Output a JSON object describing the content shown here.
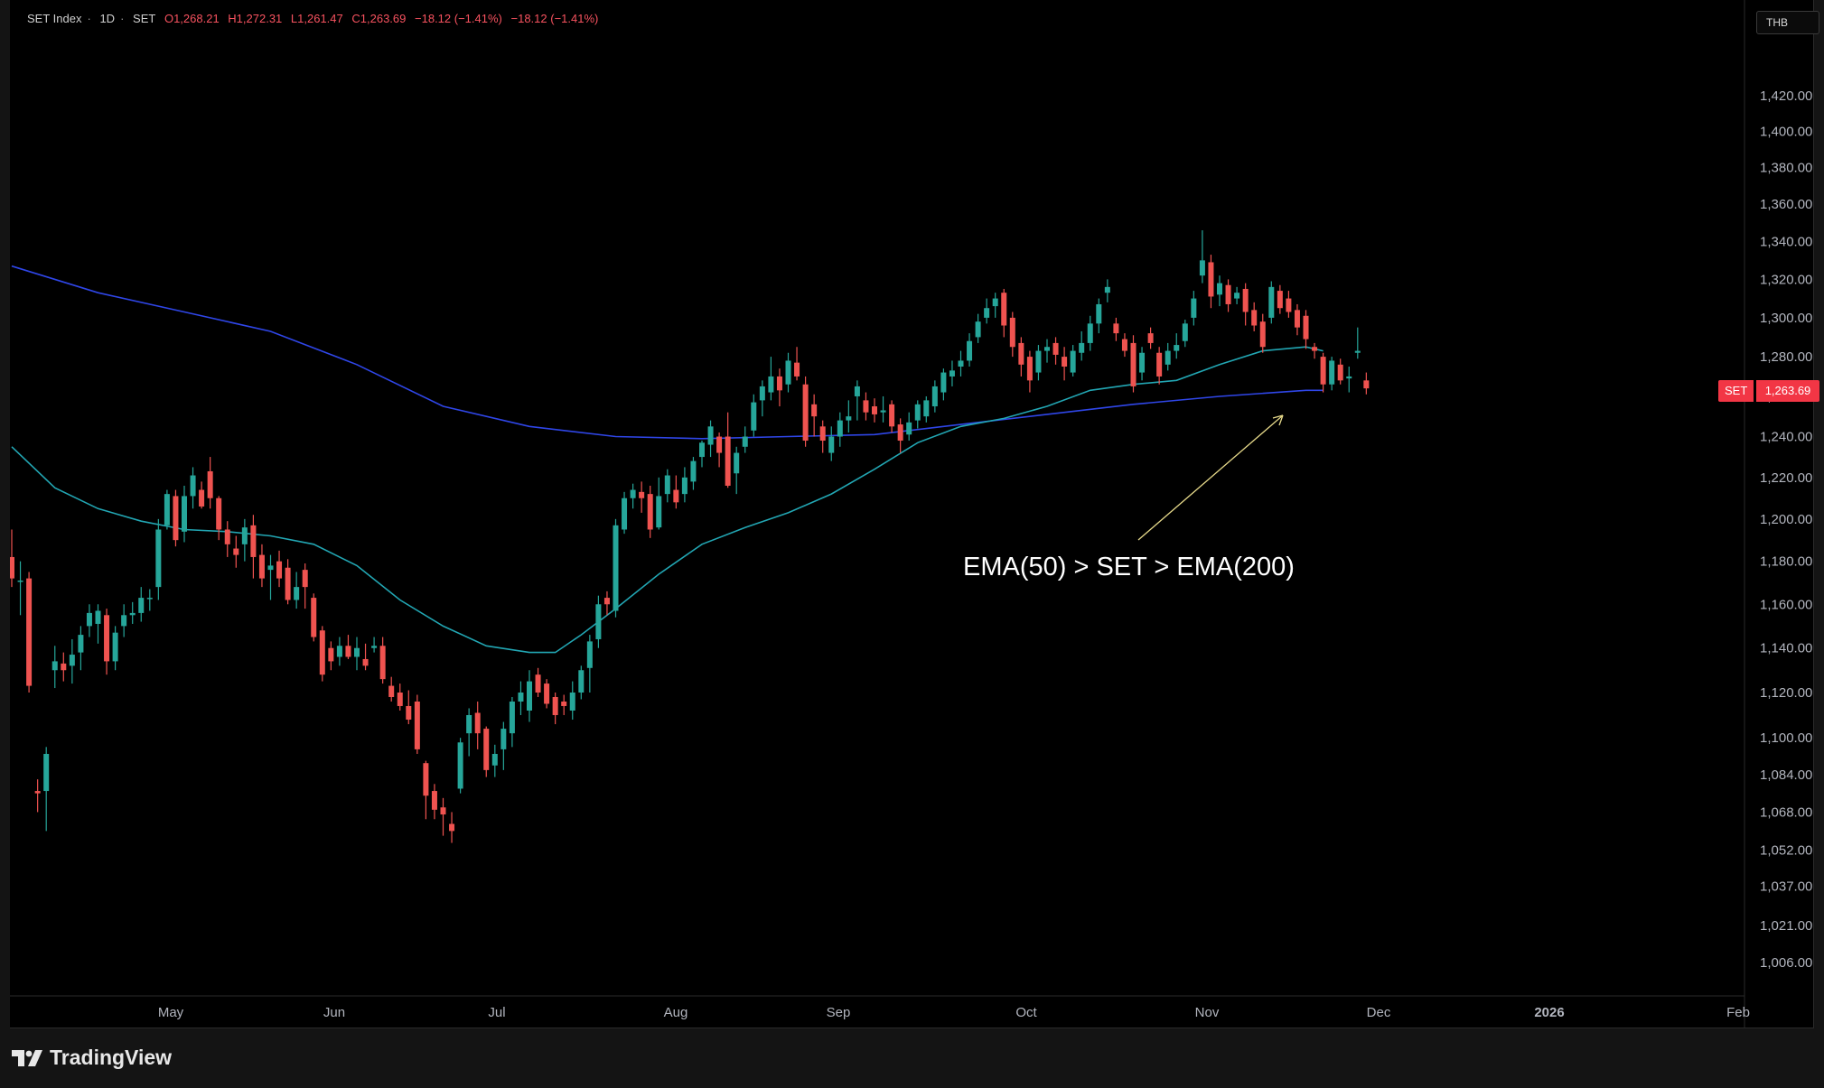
{
  "legend": {
    "symbol": "SET Index",
    "interval": "1D",
    "exchange": "SET",
    "open": "O1,268.21",
    "high": "H1,272.31",
    "low": "L1,261.47",
    "close": "C1,263.69",
    "change": "−18.12 (−1.41%)",
    "change2": "−18.12 (−1.41%)"
  },
  "currency": "THB",
  "last_price": {
    "name": "SET",
    "value": "1,263.69"
  },
  "annotation": "EMA(50) > SET > EMA(200)",
  "brand": "TradingView",
  "colors": {
    "up": "#26a69a",
    "down": "#ef5350",
    "ema50": "#22a6b3",
    "ema200": "#2f46e8",
    "arrow": "#e6d98a",
    "background": "#000000"
  },
  "chart_data": {
    "type": "candlestick",
    "title": "SET Index · 1D · SET",
    "y_axis": {
      "ticks": [
        "1,420.00",
        "1,400.00",
        "1,380.00",
        "1,360.00",
        "1,340.00",
        "1,320.00",
        "1,300.00",
        "1,280.00",
        "1,260.00",
        "1,240.00",
        "1,220.00",
        "1,200.00",
        "1,180.00",
        "1,160.00",
        "1,140.00",
        "1,120.00",
        "1,100.00",
        "1,084.00",
        "1,068.00",
        "1,052.00",
        "1,037.00",
        "1,021.00",
        "1,006.00"
      ],
      "scale": "log",
      "ylim": [
        995,
        1445
      ]
    },
    "x_axis": {
      "ticks": [
        "May",
        "Jun",
        "Jul",
        "Aug",
        "Sep",
        "Oct",
        "Nov",
        "Dec",
        "2026",
        "Feb"
      ]
    },
    "series": [
      {
        "name": "EMA(50)",
        "points": [
          [
            0,
            1235
          ],
          [
            5,
            1215
          ],
          [
            10,
            1205
          ],
          [
            15,
            1199
          ],
          [
            20,
            1195
          ],
          [
            25,
            1194
          ],
          [
            30,
            1192
          ],
          [
            35,
            1188
          ],
          [
            40,
            1178
          ],
          [
            45,
            1162
          ],
          [
            50,
            1150
          ],
          [
            55,
            1141
          ],
          [
            60,
            1138
          ],
          [
            63,
            1138
          ],
          [
            66,
            1146
          ],
          [
            70,
            1158
          ],
          [
            75,
            1174
          ],
          [
            80,
            1188
          ],
          [
            85,
            1196
          ],
          [
            90,
            1203
          ],
          [
            95,
            1212
          ],
          [
            100,
            1224
          ],
          [
            105,
            1237
          ],
          [
            110,
            1245
          ],
          [
            115,
            1249
          ],
          [
            120,
            1255
          ],
          [
            125,
            1263
          ],
          [
            130,
            1266
          ],
          [
            135,
            1268
          ],
          [
            140,
            1276
          ],
          [
            145,
            1283
          ],
          [
            150,
            1285
          ],
          [
            152,
            1283
          ]
        ]
      },
      {
        "name": "EMA(200)",
        "points": [
          [
            0,
            1327
          ],
          [
            10,
            1313
          ],
          [
            20,
            1303
          ],
          [
            30,
            1293
          ],
          [
            40,
            1276
          ],
          [
            50,
            1255
          ],
          [
            60,
            1245
          ],
          [
            70,
            1240
          ],
          [
            80,
            1239
          ],
          [
            90,
            1240
          ],
          [
            100,
            1241
          ],
          [
            110,
            1246
          ],
          [
            120,
            1251
          ],
          [
            130,
            1256
          ],
          [
            140,
            1260
          ],
          [
            150,
            1263
          ],
          [
            152,
            1263
          ]
        ]
      }
    ],
    "candles": [
      [
        1182,
        1172,
        1195,
        1168
      ],
      [
        1171,
        1171,
        1180,
        1155
      ],
      [
        1172,
        1123,
        1175,
        1120
      ],
      [
        1077,
        1076,
        1082,
        1068
      ],
      [
        1077,
        1093,
        1096,
        1060
      ],
      [
        1130,
        1134,
        1141,
        1122
      ],
      [
        1133,
        1130,
        1138,
        1125
      ],
      [
        1132,
        1137,
        1144,
        1124
      ],
      [
        1138,
        1146,
        1150,
        1130
      ],
      [
        1150,
        1156,
        1160,
        1145
      ],
      [
        1151,
        1157,
        1160,
        1142
      ],
      [
        1155,
        1134,
        1158,
        1128
      ],
      [
        1134,
        1147,
        1150,
        1130
      ],
      [
        1150,
        1155,
        1160,
        1145
      ],
      [
        1155,
        1156,
        1161,
        1151
      ],
      [
        1156,
        1163,
        1168,
        1152
      ],
      [
        1163,
        1163,
        1167,
        1157
      ],
      [
        1168,
        1195,
        1200,
        1162
      ],
      [
        1197,
        1212,
        1214,
        1195
      ],
      [
        1211,
        1190,
        1214,
        1187
      ],
      [
        1194,
        1211,
        1216,
        1189
      ],
      [
        1211,
        1221,
        1225,
        1205
      ],
      [
        1214,
        1206,
        1218,
        1205
      ],
      [
        1223,
        1210,
        1230,
        1205
      ],
      [
        1210,
        1195,
        1211,
        1190
      ],
      [
        1195,
        1188,
        1199,
        1182
      ],
      [
        1186,
        1183,
        1192,
        1177
      ],
      [
        1188,
        1196,
        1200,
        1180
      ],
      [
        1197,
        1182,
        1202,
        1172
      ],
      [
        1183,
        1172,
        1188,
        1168
      ],
      [
        1176,
        1178,
        1183,
        1162
      ],
      [
        1180,
        1172,
        1185,
        1168
      ],
      [
        1177,
        1162,
        1181,
        1160
      ],
      [
        1162,
        1168,
        1175,
        1158
      ],
      [
        1176,
        1168,
        1179,
        1158
      ],
      [
        1163,
        1145,
        1165,
        1143
      ],
      [
        1148,
        1128,
        1150,
        1125
      ],
      [
        1140,
        1134,
        1143,
        1130
      ],
      [
        1136,
        1141,
        1145,
        1132
      ],
      [
        1141,
        1136,
        1146,
        1135
      ],
      [
        1136,
        1140,
        1145,
        1130
      ],
      [
        1135,
        1132,
        1142,
        1130
      ],
      [
        1140,
        1141,
        1145,
        1138
      ],
      [
        1141,
        1126,
        1145,
        1124
      ],
      [
        1123,
        1118,
        1127,
        1116
      ],
      [
        1120,
        1114,
        1124,
        1112
      ],
      [
        1114,
        1108,
        1121,
        1106
      ],
      [
        1116,
        1095,
        1119,
        1093
      ],
      [
        1089,
        1075,
        1090,
        1065
      ],
      [
        1077,
        1069,
        1080,
        1065
      ],
      [
        1070,
        1067,
        1074,
        1058
      ],
      [
        1063,
        1060,
        1068,
        1055
      ],
      [
        1078,
        1098,
        1100,
        1076
      ],
      [
        1102,
        1110,
        1113,
        1092
      ],
      [
        1111,
        1102,
        1116,
        1095
      ],
      [
        1104,
        1086,
        1105,
        1083
      ],
      [
        1088,
        1093,
        1097,
        1083
      ],
      [
        1095,
        1104,
        1107,
        1086
      ],
      [
        1102,
        1116,
        1118,
        1096
      ],
      [
        1116,
        1120,
        1125,
        1110
      ],
      [
        1112,
        1125,
        1130,
        1107
      ],
      [
        1128,
        1120,
        1131,
        1118
      ],
      [
        1124,
        1115,
        1126,
        1113
      ],
      [
        1118,
        1110,
        1120,
        1106
      ],
      [
        1116,
        1114,
        1119,
        1110
      ],
      [
        1112,
        1120,
        1125,
        1108
      ],
      [
        1120,
        1130,
        1132,
        1117
      ],
      [
        1131,
        1143,
        1146,
        1120
      ],
      [
        1144,
        1160,
        1164,
        1140
      ],
      [
        1163,
        1160,
        1166,
        1155
      ],
      [
        1157,
        1197,
        1200,
        1154
      ],
      [
        1195,
        1210,
        1213,
        1193
      ],
      [
        1210,
        1214,
        1217,
        1205
      ],
      [
        1213,
        1210,
        1218,
        1203
      ],
      [
        1212,
        1195,
        1216,
        1191
      ],
      [
        1196,
        1211,
        1220,
        1195
      ],
      [
        1212,
        1221,
        1224,
        1208
      ],
      [
        1214,
        1208,
        1221,
        1205
      ],
      [
        1212,
        1220,
        1225,
        1208
      ],
      [
        1218,
        1228,
        1230,
        1214
      ],
      [
        1230,
        1237,
        1238,
        1225
      ],
      [
        1236,
        1245,
        1248,
        1230
      ],
      [
        1240,
        1232,
        1242,
        1225
      ],
      [
        1240,
        1216,
        1252,
        1215
      ],
      [
        1222,
        1232,
        1235,
        1212
      ],
      [
        1235,
        1240,
        1245,
        1232
      ],
      [
        1243,
        1257,
        1261,
        1240
      ],
      [
        1258,
        1265,
        1268,
        1250
      ],
      [
        1262,
        1270,
        1280,
        1258
      ],
      [
        1270,
        1263,
        1274,
        1255
      ],
      [
        1266,
        1278,
        1282,
        1262
      ],
      [
        1277,
        1270,
        1285,
        1268
      ],
      [
        1266,
        1238,
        1270,
        1235
      ],
      [
        1256,
        1250,
        1261,
        1240
      ],
      [
        1245,
        1238,
        1248,
        1232
      ],
      [
        1232,
        1240,
        1245,
        1228
      ],
      [
        1240,
        1248,
        1252,
        1235
      ],
      [
        1248,
        1250,
        1258,
        1242
      ],
      [
        1260,
        1265,
        1268,
        1248
      ],
      [
        1258,
        1252,
        1262,
        1248
      ],
      [
        1255,
        1251,
        1259,
        1247
      ],
      [
        1252,
        1253,
        1260,
        1247
      ],
      [
        1256,
        1245,
        1258,
        1242
      ],
      [
        1246,
        1238,
        1249,
        1232
      ],
      [
        1241,
        1247,
        1252,
        1238
      ],
      [
        1248,
        1256,
        1258,
        1244
      ],
      [
        1250,
        1258,
        1260,
        1247
      ],
      [
        1255,
        1265,
        1268,
        1252
      ],
      [
        1262,
        1272,
        1274,
        1258
      ],
      [
        1270,
        1273,
        1278,
        1265
      ],
      [
        1275,
        1278,
        1283,
        1270
      ],
      [
        1278,
        1288,
        1292,
        1275
      ],
      [
        1290,
        1298,
        1302,
        1287
      ],
      [
        1300,
        1305,
        1310,
        1297
      ],
      [
        1306,
        1310,
        1313,
        1300
      ],
      [
        1313,
        1296,
        1315,
        1290
      ],
      [
        1300,
        1285,
        1303,
        1280
      ],
      [
        1287,
        1276,
        1290,
        1270
      ],
      [
        1280,
        1268,
        1283,
        1262
      ],
      [
        1272,
        1283,
        1286,
        1268
      ],
      [
        1283,
        1285,
        1289,
        1277
      ],
      [
        1287,
        1281,
        1290,
        1276
      ],
      [
        1280,
        1275,
        1285,
        1268
      ],
      [
        1272,
        1283,
        1286,
        1270
      ],
      [
        1282,
        1287,
        1293,
        1278
      ],
      [
        1287,
        1297,
        1301,
        1283
      ],
      [
        1297,
        1307,
        1310,
        1292
      ],
      [
        1313,
        1316,
        1320,
        1308
      ],
      [
        1297,
        1292,
        1300,
        1288
      ],
      [
        1289,
        1283,
        1292,
        1280
      ],
      [
        1287,
        1265,
        1291,
        1262
      ],
      [
        1272,
        1282,
        1285,
        1268
      ],
      [
        1292,
        1287,
        1295,
        1284
      ],
      [
        1282,
        1270,
        1285,
        1266
      ],
      [
        1276,
        1283,
        1287,
        1273
      ],
      [
        1283,
        1286,
        1292,
        1279
      ],
      [
        1288,
        1297,
        1299,
        1285
      ],
      [
        1300,
        1310,
        1314,
        1296
      ],
      [
        1322,
        1330,
        1346,
        1318
      ],
      [
        1329,
        1311,
        1333,
        1305
      ],
      [
        1312,
        1318,
        1322,
        1306
      ],
      [
        1317,
        1307,
        1320,
        1303
      ],
      [
        1310,
        1313,
        1316,
        1307
      ],
      [
        1315,
        1303,
        1318,
        1296
      ],
      [
        1304,
        1296,
        1308,
        1293
      ],
      [
        1298,
        1285,
        1302,
        1282
      ],
      [
        1300,
        1316,
        1319,
        1297
      ],
      [
        1314,
        1305,
        1317,
        1302
      ],
      [
        1310,
        1303,
        1314,
        1300
      ],
      [
        1304,
        1295,
        1307,
        1291
      ],
      [
        1301,
        1289,
        1304,
        1284
      ],
      [
        1285,
        1283,
        1287,
        1279
      ],
      [
        1280,
        1266,
        1282,
        1262
      ],
      [
        1266,
        1278,
        1280,
        1263
      ],
      [
        1276,
        1268,
        1279,
        1266
      ],
      [
        1269,
        1270,
        1275,
        1262
      ],
      [
        1282,
        1283,
        1295,
        1279
      ],
      [
        1268,
        1264,
        1272,
        1261
      ]
    ]
  }
}
